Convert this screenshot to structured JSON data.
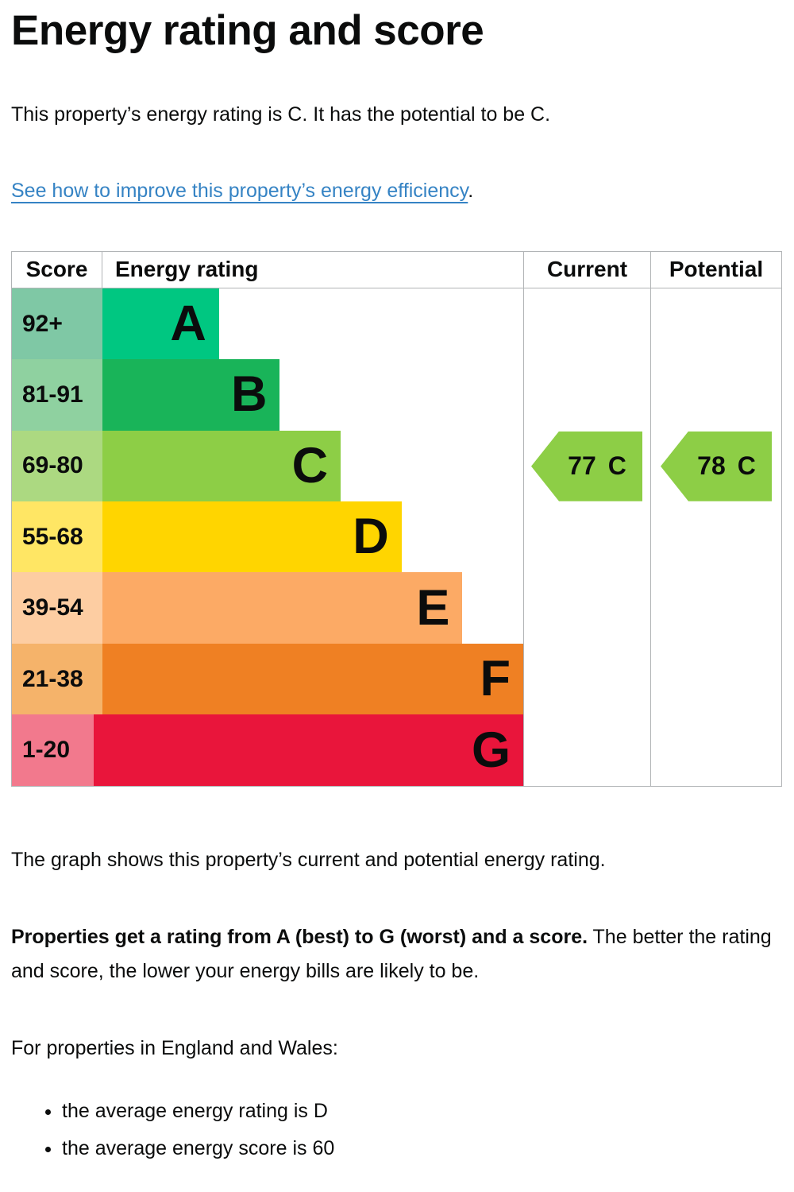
{
  "page": {
    "title": "Energy rating and score",
    "intro": "This property’s energy rating is C. It has the potential to be C.",
    "link_text": "See how to improve this property’s energy efficiency",
    "link_suffix": ".",
    "graph_caption": "The graph shows this property’s current and potential energy rating.",
    "explain_bold": "Properties get a rating from A (best) to G (worst) and a score.",
    "explain_rest": " The better the rating and score, the lower your energy bills are likely to be.",
    "regions_line": "For properties in England and Wales:",
    "bullets": [
      "the average energy rating is D",
      "the average energy score is 60"
    ]
  },
  "theme": {
    "link_color": "#3583c4",
    "border_color": "#b1b4b6",
    "text_color": "#0b0c0c"
  },
  "chart_data": {
    "type": "bar",
    "subtype": "epc-energy-rating-chart",
    "headers": {
      "score": "Score",
      "rating": "Energy rating",
      "current": "Current",
      "potential": "Potential"
    },
    "bands": [
      {
        "letter": "A",
        "score_range": "92+",
        "bar_color": "#00c781",
        "score_color": "#7fc8a5",
        "width_pct": "22.8%"
      },
      {
        "letter": "B",
        "score_range": "81-91",
        "bar_color": "#19b459",
        "score_color": "#8fd1a0",
        "width_pct": "34.7%"
      },
      {
        "letter": "C",
        "score_range": "69-80",
        "bar_color": "#8dce46",
        "score_color": "#acd981",
        "width_pct": "46.6%"
      },
      {
        "letter": "D",
        "score_range": "55-68",
        "bar_color": "#ffd500",
        "score_color": "#ffe664",
        "width_pct": "58.5%"
      },
      {
        "letter": "E",
        "score_range": "39-54",
        "bar_color": "#fcaa65",
        "score_color": "#fdcda2",
        "width_pct": "70.4%"
      },
      {
        "letter": "F",
        "score_range": "21-38",
        "bar_color": "#ef8023",
        "score_color": "#f5b36a",
        "width_pct": "82.3%"
      },
      {
        "letter": "G",
        "score_range": "1-20",
        "bar_color": "#e9153b",
        "score_color": "#f2798d",
        "width_pct": "94.2%"
      }
    ],
    "current": {
      "value": 77,
      "band": "C",
      "color": "#8dce46"
    },
    "potential": {
      "value": 78,
      "band": "C",
      "color": "#8dce46"
    }
  }
}
